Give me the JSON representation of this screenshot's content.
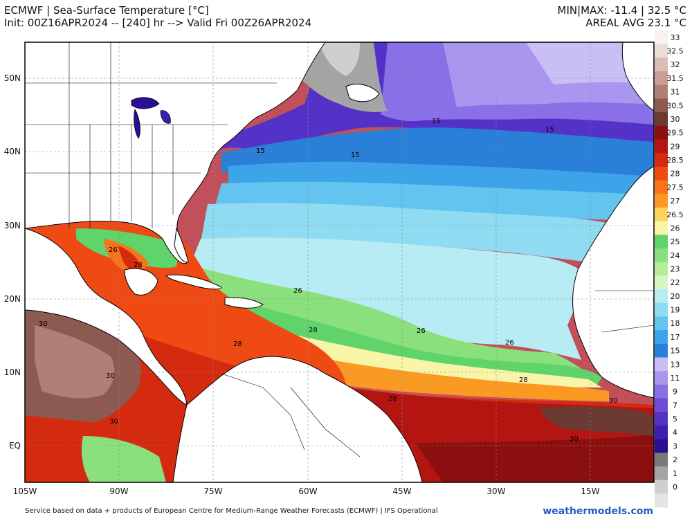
{
  "header": {
    "title_line1": "ECMWF | Sea-Surface Temperature [°C]",
    "title_line2": "Init: 00Z16APR2024 -- [240] hr --> Valid Fri 00Z26APR2024",
    "stats_line1": "MIN|MAX: -11.4 | 32.5 °C",
    "stats_line2": "AREAL AVG 23.1 °C"
  },
  "axes": {
    "lon_labels": [
      "105W",
      "90W",
      "75W",
      "60W",
      "45W",
      "30W",
      "15W"
    ],
    "lat_labels": [
      "50N",
      "40N",
      "30N",
      "20N",
      "10N",
      "EQ"
    ]
  },
  "colorbar": {
    "levels": [
      {
        "label": "33",
        "color": "#f7f2ee"
      },
      {
        "label": "32.5",
        "color": "#ecdcd6"
      },
      {
        "label": "32",
        "color": "#dbbdb5"
      },
      {
        "label": "31.5",
        "color": "#c89e95"
      },
      {
        "label": "31",
        "color": "#b08078"
      },
      {
        "label": "30.5",
        "color": "#8c5a50"
      },
      {
        "label": "30",
        "color": "#6a3a33"
      },
      {
        "label": "29.5",
        "color": "#8b0f0f"
      },
      {
        "label": "29",
        "color": "#b41510"
      },
      {
        "label": "28.5",
        "color": "#d42a10"
      },
      {
        "label": "28",
        "color": "#f04a14"
      },
      {
        "label": "27.5",
        "color": "#f7741a"
      },
      {
        "label": "27",
        "color": "#fb9a22"
      },
      {
        "label": "26.5",
        "color": "#fdd35e"
      },
      {
        "label": "26",
        "color": "#f8f5a8"
      },
      {
        "label": "25",
        "color": "#5fd46a"
      },
      {
        "label": "24",
        "color": "#8be07e"
      },
      {
        "label": "23",
        "color": "#b6ec9a"
      },
      {
        "label": "22",
        "color": "#d8f3c4"
      },
      {
        "label": "20",
        "color": "#b8ecf4"
      },
      {
        "label": "19",
        "color": "#8fdcf2"
      },
      {
        "label": "18",
        "color": "#62c4ef"
      },
      {
        "label": "17",
        "color": "#3ea4ea"
      },
      {
        "label": "15",
        "color": "#2a7fd9"
      },
      {
        "label": "13",
        "color": "#c9bff4"
      },
      {
        "label": "11",
        "color": "#a996ee"
      },
      {
        "label": "9",
        "color": "#8a70e6"
      },
      {
        "label": "7",
        "color": "#6e4cd8"
      },
      {
        "label": "5",
        "color": "#5432c8"
      },
      {
        "label": "4",
        "color": "#3d1fb0"
      },
      {
        "label": "3",
        "color": "#2a0f94"
      },
      {
        "label": "2",
        "color": "#7a7a7a"
      },
      {
        "label": "1",
        "color": "#a4a4a4"
      },
      {
        "label": "0",
        "color": "#cfcfcf"
      },
      {
        "label": "",
        "color": "#e4e4e4"
      }
    ]
  },
  "contour_labels": [
    {
      "text": "15"
    },
    {
      "text": "15"
    },
    {
      "text": "15"
    },
    {
      "text": "15"
    },
    {
      "text": "26"
    },
    {
      "text": "28"
    },
    {
      "text": "26"
    },
    {
      "text": "28"
    },
    {
      "text": "28"
    },
    {
      "text": "26"
    },
    {
      "text": "26"
    },
    {
      "text": "28"
    },
    {
      "text": "28"
    },
    {
      "text": "30"
    },
    {
      "text": "30"
    },
    {
      "text": "30"
    },
    {
      "text": "30"
    },
    {
      "text": "30"
    }
  ],
  "footer": {
    "credits": "Service based on data + products of European Centre for Medium-Range Weather Forecasts (ECMWF) | IFS Operational",
    "site": "weathermodels.com"
  }
}
